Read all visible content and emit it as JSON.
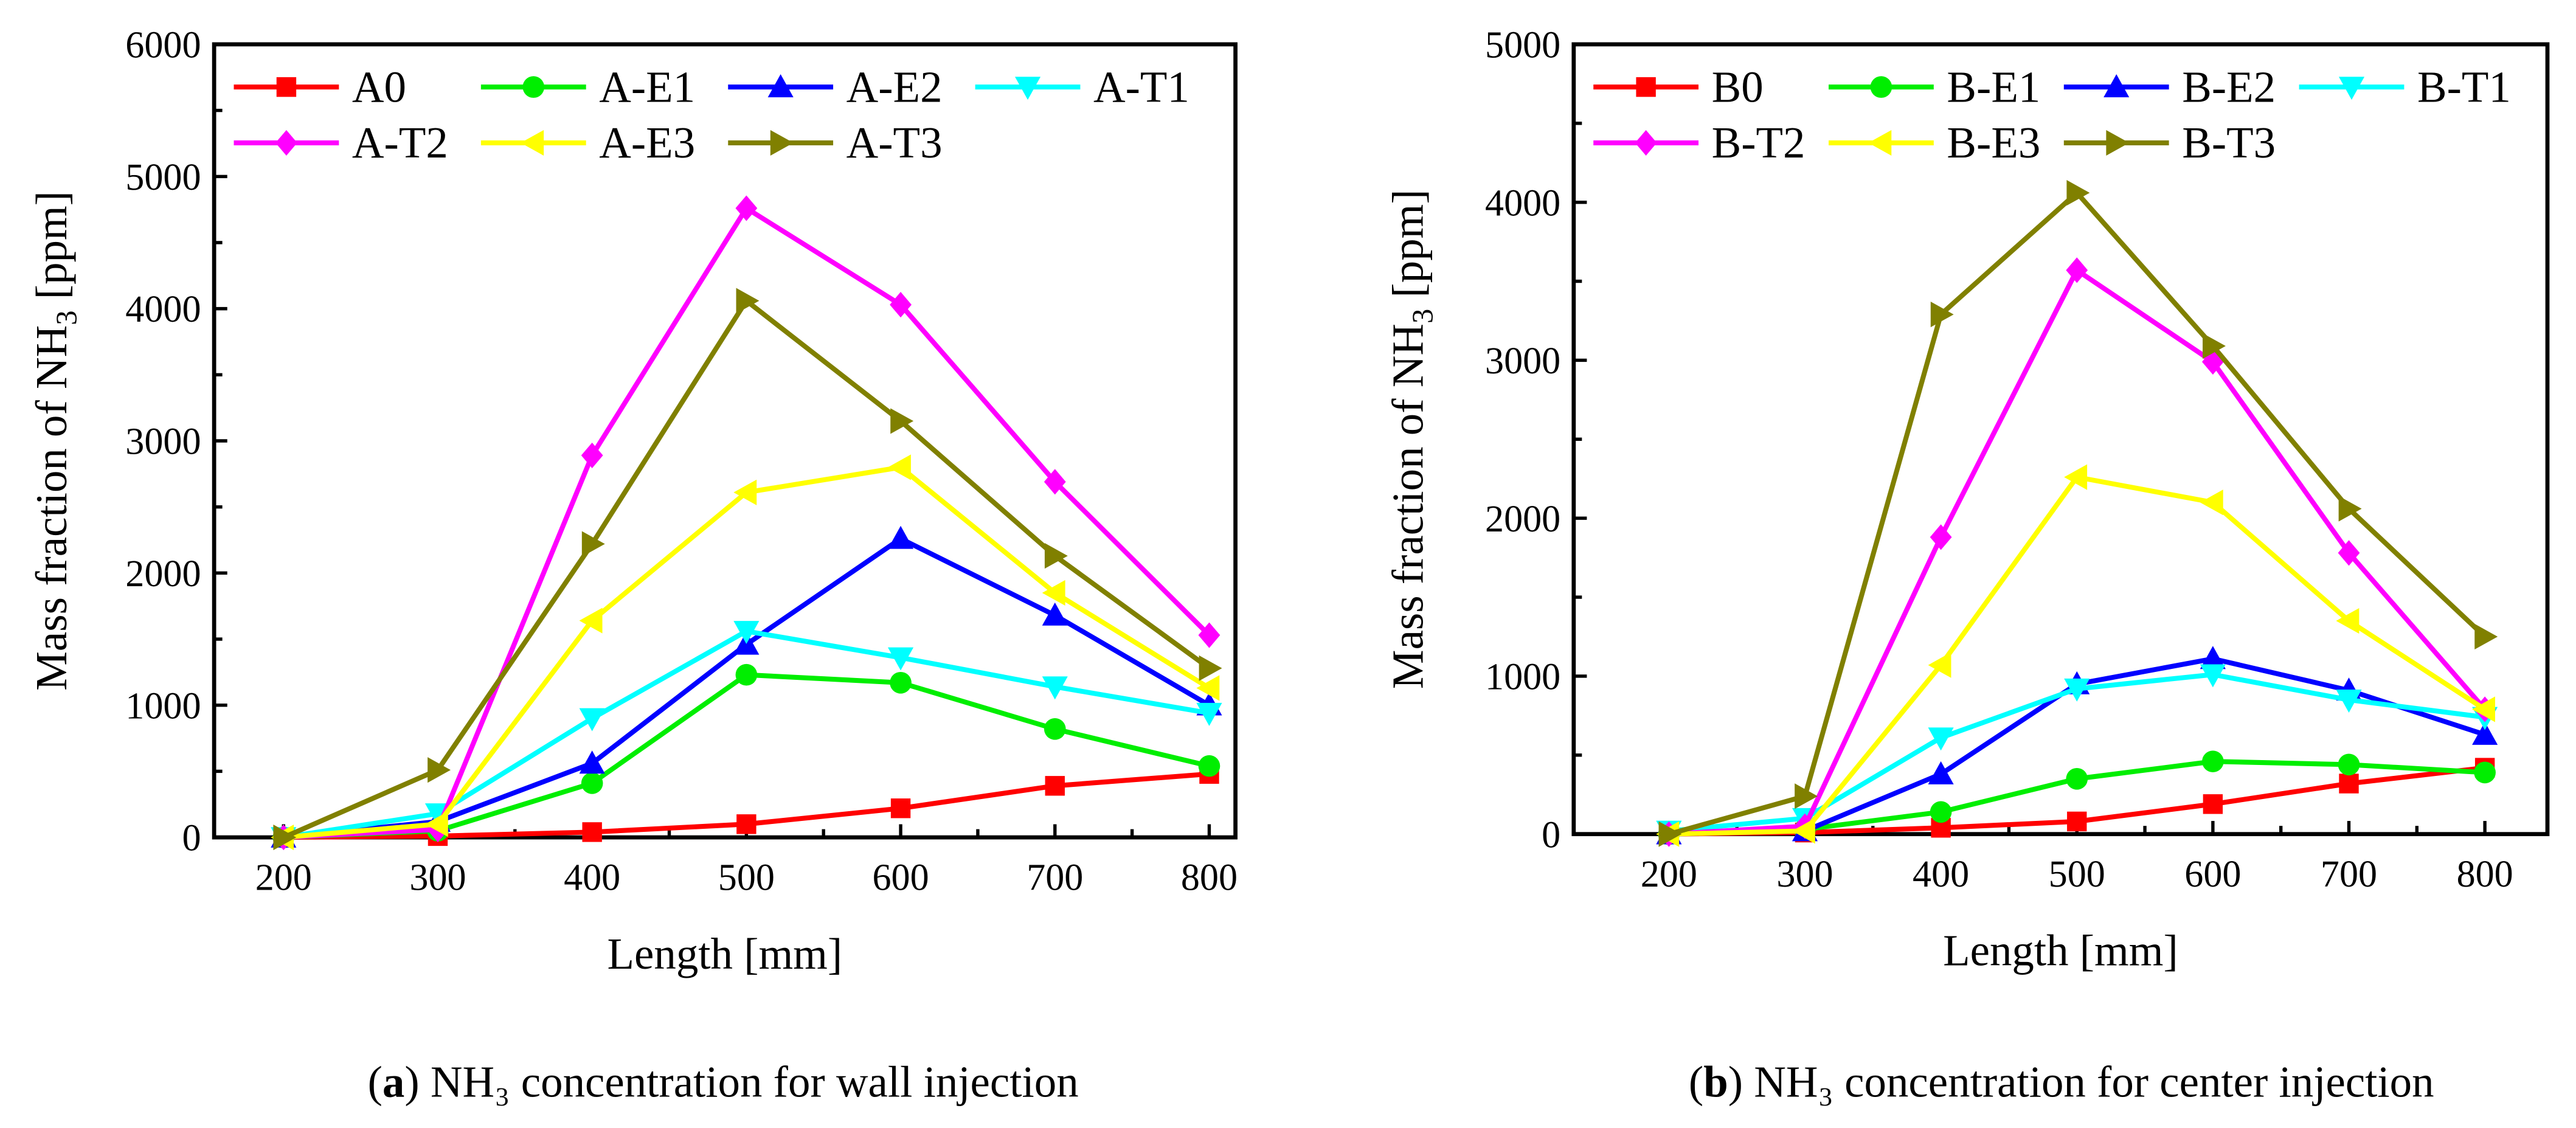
{
  "chart_data": [
    {
      "type": "line",
      "ylabel_main": "Mass fraction of NH",
      "ylabel_sub": "3",
      "ylabel_tail": " [ppm]",
      "xlabel": "Length [mm]",
      "caption_letter": "a",
      "caption_text": " NH₃ concentration for wall injection",
      "x": [
        200,
        300,
        400,
        500,
        600,
        700,
        800
      ],
      "xticks": [
        200,
        300,
        400,
        500,
        600,
        700,
        800
      ],
      "yticks": [
        0,
        1000,
        2000,
        3000,
        4000,
        5000,
        6000
      ],
      "xlim": [
        155,
        817
      ],
      "ylim": [
        0,
        6000
      ],
      "legend": "top, 4 columns",
      "series": [
        {
          "name": "A0",
          "color": "#ff0000",
          "marker": "square",
          "values": [
            0,
            10,
            40,
            100,
            220,
            390,
            480
          ]
        },
        {
          "name": "A-E1",
          "color": "#00ee00",
          "marker": "circle",
          "values": [
            0,
            50,
            410,
            1230,
            1170,
            820,
            540
          ]
        },
        {
          "name": "A-E2",
          "color": "#0000ff",
          "marker": "triangle-up",
          "values": [
            0,
            120,
            560,
            1460,
            2260,
            1680,
            1000
          ]
        },
        {
          "name": "A-T1",
          "color": "#00ffff",
          "marker": "triangle-down",
          "values": [
            0,
            180,
            900,
            1560,
            1360,
            1140,
            940
          ]
        },
        {
          "name": "A-T2",
          "color": "#ff00ff",
          "marker": "diamond",
          "values": [
            0,
            60,
            2890,
            4760,
            4030,
            2690,
            1530
          ]
        },
        {
          "name": "A-E3",
          "color": "#ffff00",
          "marker": "triangle-left",
          "values": [
            0,
            100,
            1640,
            2610,
            2800,
            1850,
            1130
          ]
        },
        {
          "name": "A-T3",
          "color": "#808000",
          "marker": "triangle-right",
          "values": [
            0,
            510,
            2220,
            4060,
            3150,
            2130,
            1280
          ]
        }
      ]
    },
    {
      "type": "line",
      "ylabel_main": "Mass fraction of NH",
      "ylabel_sub": "3",
      "ylabel_tail": " [ppm]",
      "xlabel": "Length [mm]",
      "caption_letter": "b",
      "caption_text": " NH₃ concentration for center injection",
      "x": [
        200,
        300,
        400,
        500,
        600,
        700,
        800
      ],
      "xticks": [
        200,
        300,
        400,
        500,
        600,
        700,
        800
      ],
      "yticks": [
        0,
        1000,
        2000,
        3000,
        4000,
        5000
      ],
      "xlim": [
        130,
        846
      ],
      "ylim": [
        0,
        5000
      ],
      "legend": "top, 4 columns",
      "series": [
        {
          "name": "B0",
          "color": "#ff0000",
          "marker": "square",
          "values": [
            0,
            10,
            40,
            80,
            190,
            320,
            420
          ]
        },
        {
          "name": "B-E1",
          "color": "#00ee00",
          "marker": "circle",
          "values": [
            0,
            30,
            140,
            350,
            460,
            440,
            390
          ]
        },
        {
          "name": "B-E2",
          "color": "#0000ff",
          "marker": "triangle-up",
          "values": [
            0,
            20,
            380,
            950,
            1110,
            910,
            630
          ]
        },
        {
          "name": "B-T1",
          "color": "#00ffff",
          "marker": "triangle-down",
          "values": [
            20,
            100,
            610,
            920,
            1010,
            850,
            740
          ]
        },
        {
          "name": "B-T2",
          "color": "#ff00ff",
          "marker": "diamond",
          "values": [
            0,
            50,
            1880,
            3570,
            2990,
            1780,
            790
          ]
        },
        {
          "name": "B-E3",
          "color": "#ffff00",
          "marker": "triangle-left",
          "values": [
            0,
            20,
            1070,
            2260,
            2100,
            1350,
            790
          ]
        },
        {
          "name": "B-T3",
          "color": "#808000",
          "marker": "triangle-right",
          "values": [
            0,
            240,
            3290,
            4060,
            3090,
            2060,
            1250
          ]
        }
      ]
    }
  ]
}
